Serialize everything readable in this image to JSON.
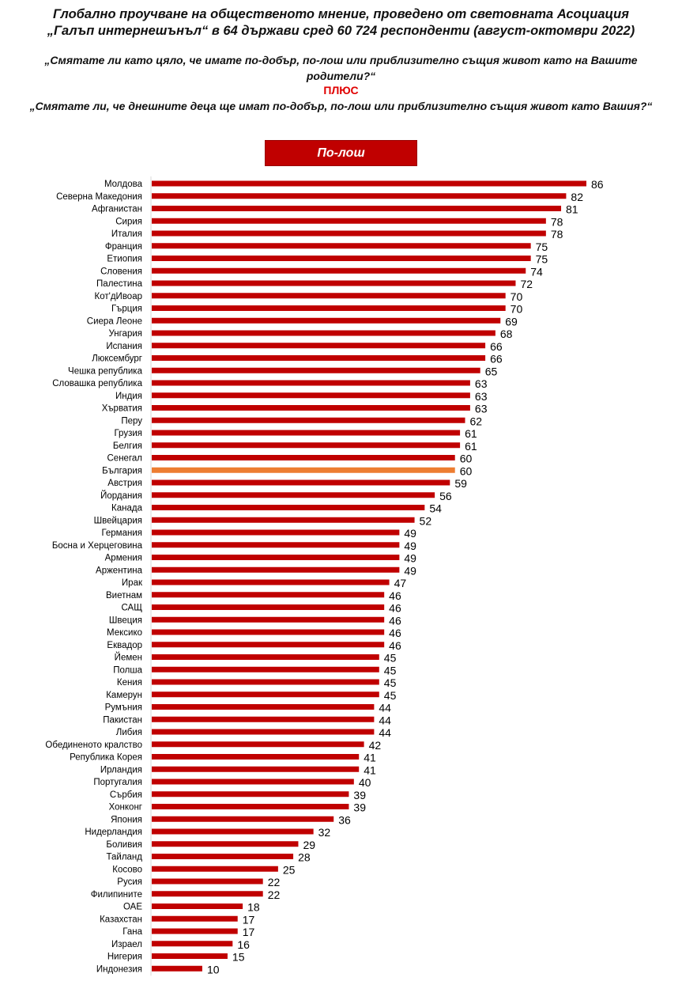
{
  "header": {
    "title_line1": "Глобално проучване на общественото мнение, проведено от световната Асоциация",
    "title_line2": "„Галъп интернешънъл“ в 64 държави сред 60 724 респонденти (август-октомври 2022)",
    "question1": "„Смятате ли като цяло, че имате по-добър, по-лош или приблизително същия живот като на Вашите родители?“",
    "plus": "ПЛЮС",
    "question2": "„Смятате ли, че днешните деца ще имат по-добър, по-лош или приблизително същия живот като Вашия?“"
  },
  "chart_data": {
    "type": "bar",
    "orientation": "horizontal",
    "legend": "По-лош",
    "legend_placement": "top-center",
    "grid": false,
    "xlim": [
      0,
      86
    ],
    "colors": {
      "default": "#c00000",
      "highlight": "#ed7d31"
    },
    "highlight": "България",
    "categories": [
      "Молдова",
      "Северна Македония",
      "Афганистан",
      "Сирия",
      "Италия",
      "Франция",
      "Етиопия",
      "Словения",
      "Палестина",
      "Кот'дИвоар",
      "Гърция",
      "Сиера Леоне",
      "Унгария",
      "Испания",
      "Люксембург",
      "Чешка република",
      "Словашка република",
      "Индия",
      "Хърватия",
      "Перу",
      "Грузия",
      "Белгия",
      "Сенегал",
      "България",
      "Австрия",
      "Йордания",
      "Канада",
      "Швейцария",
      "Германия",
      "Босна и Херцеговина",
      "Армения",
      "Аржентина",
      "Ирак",
      "Виетнам",
      "САЩ",
      "Швеция",
      "Мексико",
      "Еквадор",
      "Йемен",
      "Полша",
      "Кения",
      "Камерун",
      "Румъния",
      "Пакистан",
      "Либия",
      "Обединеното кралство",
      "Република Корея",
      "Ирландия",
      "Португалия",
      "Сърбия",
      "Хонконг",
      "Япония",
      "Нидерландия",
      "Боливия",
      "Тайланд",
      "Косово",
      "Русия",
      "Филипините",
      "ОАЕ",
      "Казахстан",
      "Гана",
      "Израел",
      "Нигерия",
      "Индонезия"
    ],
    "values": [
      86,
      82,
      81,
      78,
      78,
      75,
      75,
      74,
      72,
      70,
      70,
      69,
      68,
      66,
      66,
      65,
      63,
      63,
      63,
      62,
      61,
      61,
      60,
      60,
      59,
      56,
      54,
      52,
      49,
      49,
      49,
      49,
      47,
      46,
      46,
      46,
      46,
      46,
      45,
      45,
      45,
      45,
      44,
      44,
      44,
      42,
      41,
      41,
      40,
      39,
      39,
      36,
      32,
      29,
      28,
      25,
      22,
      22,
      18,
      17,
      17,
      16,
      15,
      10
    ]
  }
}
